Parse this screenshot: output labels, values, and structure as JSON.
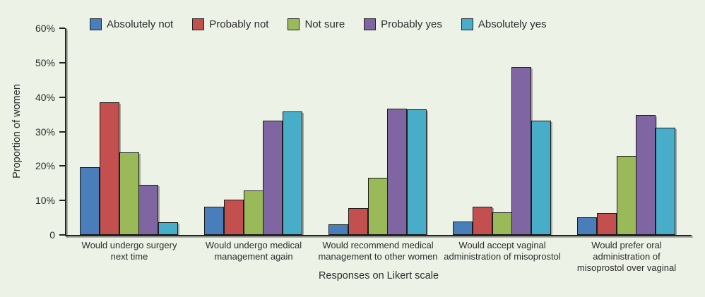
{
  "figure": {
    "background_color": "#edf2e6",
    "text_color": "#2d2d2d"
  },
  "chart_data": {
    "type": "bar",
    "title": "",
    "xlabel": "Responses on Likert scale",
    "ylabel": "Proportion of women",
    "ylim": [
      0,
      60
    ],
    "ytick_labels": [
      "0",
      "10%",
      "20%",
      "30%",
      "40%",
      "50%",
      "60%"
    ],
    "grid": false,
    "legend_position": "top",
    "categories": [
      "Would undergo surgery next time",
      "Would undergo medical management again",
      "Would recommend medical management to other women",
      "Would accept vaginal administration of misoprostol",
      "Would prefer oral administration of misoprostol over vaginal"
    ],
    "category_label_lines": [
      [
        "Would undergo surgery",
        "next time"
      ],
      [
        "Would undergo medical",
        "management again"
      ],
      [
        "Would recommend medical",
        "management to other women"
      ],
      [
        "Would accept vaginal",
        "administration of misoprostol"
      ],
      [
        "Would prefer oral",
        "administration of",
        "misoprostol over vaginal"
      ]
    ],
    "series": [
      {
        "name": "Absolutely not",
        "color": "#4a7ebb",
        "values": [
          19.6,
          8.2,
          3.1,
          3.9,
          5.1
        ]
      },
      {
        "name": "Probably not",
        "color": "#c3504e",
        "values": [
          38.5,
          10.2,
          7.7,
          8.2,
          6.3
        ]
      },
      {
        "name": "Not sure",
        "color": "#9aba59",
        "values": [
          24.0,
          12.8,
          16.5,
          6.5,
          23.0
        ]
      },
      {
        "name": "Probably yes",
        "color": "#8065a3",
        "values": [
          14.5,
          33.2,
          36.6,
          48.7,
          34.9
        ]
      },
      {
        "name": "Absolutely yes",
        "color": "#47adc8",
        "values": [
          3.7,
          35.9,
          36.5,
          33.1,
          31.2
        ]
      }
    ]
  }
}
